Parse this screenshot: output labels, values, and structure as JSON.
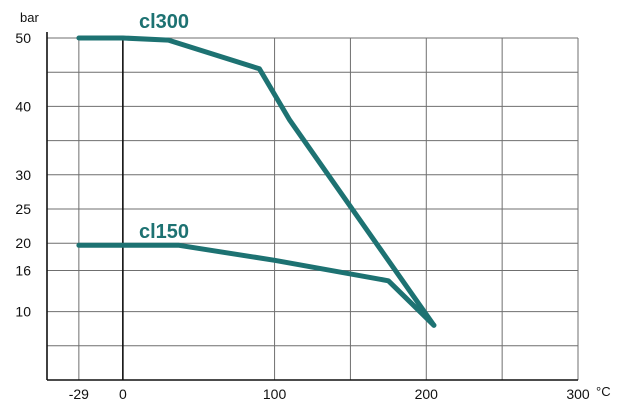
{
  "chart_data": {
    "type": "line",
    "ylabel": "bar",
    "xlabel": "°C",
    "xlim": [
      -50,
      300
    ],
    "ylim": [
      0,
      50
    ],
    "x_ticks": [
      {
        "value": -29,
        "label": "-29"
      },
      {
        "value": 0,
        "label": "0"
      },
      {
        "value": 100,
        "label": "100"
      },
      {
        "value": 200,
        "label": "200"
      },
      {
        "value": 300,
        "label": "300"
      }
    ],
    "x_gridlines": [
      -29,
      0,
      100,
      150,
      200,
      250
    ],
    "y_ticks": [
      {
        "value": 10,
        "label": "10"
      },
      {
        "value": 16,
        "label": "16"
      },
      {
        "value": 20,
        "label": "20"
      },
      {
        "value": 25,
        "label": "25"
      },
      {
        "value": 30,
        "label": "30"
      },
      {
        "value": 40,
        "label": "40"
      },
      {
        "value": 50,
        "label": "50"
      }
    ],
    "y_gridlines": [
      5,
      10,
      16,
      20,
      25,
      30,
      35,
      40,
      45,
      50
    ],
    "grid": true,
    "series_color": "#1d7272",
    "series": [
      {
        "name": "cl300",
        "x": [
          -29,
          0,
          30,
          90,
          110,
          205
        ],
        "y": [
          50,
          50,
          49.7,
          45.5,
          38,
          8
        ]
      },
      {
        "name": "cl150",
        "x": [
          -29,
          37,
          100,
          175,
          205
        ],
        "y": [
          19.7,
          19.7,
          17.5,
          14.5,
          8
        ]
      }
    ]
  }
}
